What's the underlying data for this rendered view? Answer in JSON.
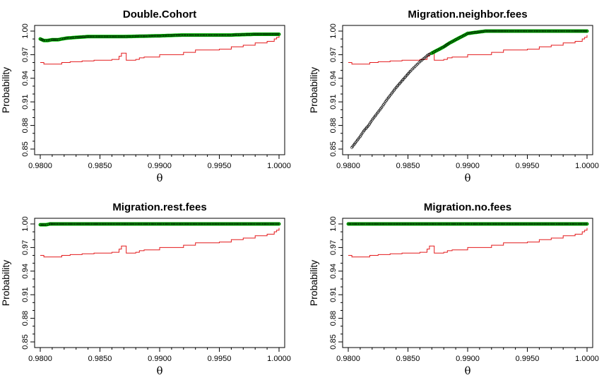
{
  "chart_data": [
    {
      "type": "line",
      "title": "Double.Cohort",
      "xlabel": "θ",
      "ylabel": "Probability",
      "xlim": [
        0.98,
        1.0
      ],
      "ylim": [
        0.85,
        1.0
      ],
      "x_ticks": [
        "0.9800",
        "0.9850",
        "0.9900",
        "0.9950",
        "1.0000"
      ],
      "y_ticks": [
        "0.85",
        "0.88",
        "0.91",
        "0.94",
        "0.97",
        "1.00"
      ],
      "series": [
        {
          "color": "#e41a1c",
          "style": "line",
          "x": [
            0.98,
            0.9803,
            0.9812,
            0.9818,
            0.9825,
            0.9835,
            0.9845,
            0.986,
            0.9866,
            0.9868,
            0.987,
            0.9872,
            0.988,
            0.9883,
            0.9887,
            0.99,
            0.992,
            0.993,
            0.995,
            0.996,
            0.997,
            0.998,
            0.999,
            0.9996,
            0.9998,
            1.0
          ],
          "y": [
            0.96,
            0.958,
            0.958,
            0.96,
            0.961,
            0.962,
            0.963,
            0.964,
            0.968,
            0.972,
            0.972,
            0.963,
            0.964,
            0.966,
            0.967,
            0.97,
            0.973,
            0.976,
            0.977,
            0.98,
            0.982,
            0.985,
            0.987,
            0.99,
            0.992,
            0.995
          ]
        },
        {
          "color": "#000000",
          "style": "points-green",
          "x": [
            0.98,
            0.9803,
            0.9806,
            0.981,
            0.9815,
            0.9818,
            0.9822,
            0.983,
            0.984,
            0.987,
            0.99,
            0.992,
            0.994,
            0.996,
            0.998,
            0.999,
            0.9995,
            1.0
          ],
          "y": [
            0.99,
            0.988,
            0.988,
            0.989,
            0.989,
            0.99,
            0.991,
            0.992,
            0.993,
            0.993,
            0.994,
            0.995,
            0.995,
            0.995,
            0.996,
            0.996,
            0.996,
            0.996
          ]
        }
      ]
    },
    {
      "type": "line",
      "title": "Migration.neighbor.fees",
      "xlabel": "θ",
      "ylabel": "Probability",
      "xlim": [
        0.98,
        1.0
      ],
      "ylim": [
        0.85,
        1.0
      ],
      "x_ticks": [
        "0.9800",
        "0.9850",
        "0.9900",
        "0.9950",
        "1.0000"
      ],
      "y_ticks": [
        "0.85",
        "0.88",
        "0.91",
        "0.94",
        "0.97",
        "1.00"
      ],
      "series": [
        {
          "color": "#e41a1c",
          "style": "line",
          "x": [
            0.98,
            0.9803,
            0.9812,
            0.9818,
            0.9825,
            0.9835,
            0.9845,
            0.986,
            0.9866,
            0.9868,
            0.987,
            0.9872,
            0.988,
            0.9883,
            0.9887,
            0.99,
            0.992,
            0.993,
            0.995,
            0.996,
            0.997,
            0.998,
            0.999,
            0.9996,
            0.9998,
            1.0
          ],
          "y": [
            0.96,
            0.958,
            0.958,
            0.96,
            0.961,
            0.962,
            0.963,
            0.964,
            0.968,
            0.972,
            0.972,
            0.963,
            0.964,
            0.966,
            0.967,
            0.97,
            0.973,
            0.976,
            0.977,
            0.98,
            0.982,
            0.985,
            0.987,
            0.99,
            0.992,
            0.995
          ]
        },
        {
          "color": "#000000",
          "style": "points-black",
          "x": [
            0.9803,
            0.9806,
            0.981,
            0.9813,
            0.9817,
            0.982,
            0.9824,
            0.9828,
            0.9832,
            0.9836,
            0.984,
            0.9844,
            0.9848,
            0.9852,
            0.9856,
            0.986,
            0.9864,
            0.9867,
            0.987
          ],
          "y": [
            0.852,
            0.858,
            0.866,
            0.873,
            0.88,
            0.887,
            0.895,
            0.903,
            0.912,
            0.92,
            0.928,
            0.935,
            0.942,
            0.949,
            0.955,
            0.961,
            0.966,
            0.97,
            0.972
          ]
        },
        {
          "color": "#000000",
          "style": "points-green",
          "x": [
            0.987,
            0.9875,
            0.988,
            0.9885,
            0.989,
            0.9895,
            0.99,
            0.9905,
            0.991,
            0.9915,
            0.993,
            0.995,
            0.997,
            0.999,
            1.0
          ],
          "y": [
            0.972,
            0.976,
            0.98,
            0.985,
            0.989,
            0.993,
            0.997,
            0.998,
            0.999,
            1.0,
            1.0,
            1.0,
            1.0,
            1.0,
            1.0
          ]
        }
      ]
    },
    {
      "type": "line",
      "title": "Migration.rest.fees",
      "xlabel": "θ",
      "ylabel": "Probability",
      "xlim": [
        0.98,
        1.0
      ],
      "ylim": [
        0.85,
        1.0
      ],
      "x_ticks": [
        "0.9800",
        "0.9850",
        "0.9900",
        "0.9950",
        "1.0000"
      ],
      "y_ticks": [
        "0.85",
        "0.88",
        "0.91",
        "0.94",
        "0.97",
        "1.00"
      ],
      "series": [
        {
          "color": "#e41a1c",
          "style": "line",
          "x": [
            0.98,
            0.9803,
            0.9812,
            0.9818,
            0.9825,
            0.9835,
            0.9845,
            0.986,
            0.9866,
            0.9868,
            0.987,
            0.9872,
            0.988,
            0.9883,
            0.9887,
            0.99,
            0.992,
            0.993,
            0.995,
            0.996,
            0.997,
            0.998,
            0.999,
            0.9996,
            0.9998,
            1.0
          ],
          "y": [
            0.96,
            0.958,
            0.958,
            0.96,
            0.961,
            0.962,
            0.963,
            0.964,
            0.968,
            0.972,
            0.972,
            0.963,
            0.964,
            0.966,
            0.967,
            0.97,
            0.973,
            0.976,
            0.977,
            0.98,
            0.982,
            0.985,
            0.987,
            0.99,
            0.992,
            0.995
          ]
        },
        {
          "color": "#000000",
          "style": "points-green",
          "x": [
            0.98,
            0.9805,
            0.9808,
            0.981,
            0.985,
            0.99,
            0.995,
            1.0
          ],
          "y": [
            0.999,
            0.999,
            1.0,
            1.0,
            1.0,
            1.0,
            1.0,
            1.0
          ]
        }
      ]
    },
    {
      "type": "line",
      "title": "Migration.no.fees",
      "xlabel": "θ",
      "ylabel": "Probability",
      "xlim": [
        0.98,
        1.0
      ],
      "ylim": [
        0.85,
        1.0
      ],
      "x_ticks": [
        "0.9800",
        "0.9850",
        "0.9900",
        "0.9950",
        "1.0000"
      ],
      "y_ticks": [
        "0.85",
        "0.88",
        "0.91",
        "0.94",
        "0.97",
        "1.00"
      ],
      "series": [
        {
          "color": "#e41a1c",
          "style": "line",
          "x": [
            0.98,
            0.9803,
            0.9812,
            0.9818,
            0.9825,
            0.9835,
            0.9845,
            0.986,
            0.9866,
            0.9868,
            0.987,
            0.9872,
            0.988,
            0.9883,
            0.9887,
            0.99,
            0.992,
            0.993,
            0.995,
            0.996,
            0.997,
            0.998,
            0.999,
            0.9996,
            0.9998,
            1.0
          ],
          "y": [
            0.96,
            0.958,
            0.958,
            0.96,
            0.961,
            0.962,
            0.963,
            0.964,
            0.968,
            0.972,
            0.972,
            0.963,
            0.964,
            0.966,
            0.967,
            0.97,
            0.973,
            0.976,
            0.977,
            0.98,
            0.982,
            0.985,
            0.987,
            0.99,
            0.992,
            0.995
          ]
        },
        {
          "color": "#000000",
          "style": "points-green",
          "x": [
            0.98,
            0.985,
            0.99,
            0.995,
            1.0
          ],
          "y": [
            1.0,
            1.0,
            1.0,
            1.0,
            1.0
          ]
        }
      ]
    }
  ]
}
